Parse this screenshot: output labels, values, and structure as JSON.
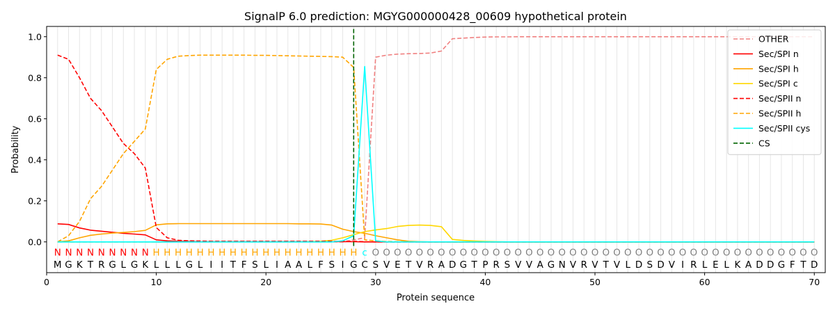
{
  "chart_data": {
    "type": "line",
    "title": "SignalP 6.0 prediction: MGYG000000428_00609 hypothetical protein",
    "xlabel": "Protein sequence",
    "ylabel": "Probability",
    "xlim": [
      0,
      71
    ],
    "ylim": [
      -0.15,
      1.05
    ],
    "xticks": [
      0,
      10,
      20,
      30,
      40,
      50,
      60,
      70
    ],
    "yticks": [
      0.0,
      0.2,
      0.4,
      0.6,
      0.8,
      1.0
    ],
    "grid": "vertical lines at each residue",
    "legend_position": "top-right",
    "sequence": [
      "M",
      "G",
      "K",
      "T",
      "R",
      "G",
      "L",
      "G",
      "K",
      "L",
      "L",
      "L",
      "G",
      "L",
      "I",
      "I",
      "T",
      "F",
      "S",
      "L",
      "I",
      "A",
      "A",
      "L",
      "F",
      "S",
      "I",
      "G",
      "C",
      "S",
      "V",
      "E",
      "T",
      "V",
      "R",
      "A",
      "D",
      "G",
      "T",
      "P",
      "R",
      "S",
      "V",
      "V",
      "A",
      "G",
      "N",
      "V",
      "R",
      "V",
      "T",
      "V",
      "L",
      "D",
      "S",
      "D",
      "V",
      "I",
      "R",
      "L",
      "E",
      "L",
      "K",
      "A",
      "D",
      "D",
      "G",
      "F",
      "T",
      "D"
    ],
    "states": [
      "N",
      "N",
      "N",
      "N",
      "N",
      "N",
      "N",
      "N",
      "N",
      "H",
      "H",
      "H",
      "H",
      "H",
      "H",
      "H",
      "H",
      "H",
      "H",
      "H",
      "H",
      "H",
      "H",
      "H",
      "H",
      "H",
      "H",
      "H",
      "C",
      "O",
      "O",
      "O",
      "O",
      "O",
      "O",
      "O",
      "O",
      "O",
      "O",
      "O",
      "O",
      "O",
      "O",
      "O",
      "O",
      "O",
      "O",
      "O",
      "O",
      "O",
      "O",
      "O",
      "O",
      "O",
      "O",
      "O",
      "O",
      "O",
      "O",
      "O",
      "O",
      "O",
      "O",
      "O",
      "O",
      "O",
      "O",
      "O",
      "O",
      "O"
    ],
    "state_colors": {
      "N": "#ff0000",
      "H": "#ffa500",
      "C": "#00ffff",
      "O": "#808080"
    },
    "cleavage_site": 28,
    "series": [
      {
        "name": "OTHER",
        "color": "#f08080",
        "dash": "dashed",
        "values": [
          0.0,
          0.0,
          0.0,
          0.0,
          0.0,
          0.0,
          0.0,
          0.0,
          0.0,
          0.0,
          0.0,
          0.0,
          0.0,
          0.0,
          0.0,
          0.0,
          0.0,
          0.0,
          0.0,
          0.0,
          0.0,
          0.0,
          0.0,
          0.0,
          0.0,
          0.0,
          0.0,
          0.01,
          0.02,
          0.9,
          0.91,
          0.915,
          0.917,
          0.918,
          0.92,
          0.93,
          0.99,
          0.993,
          0.996,
          0.998,
          0.999,
          0.999,
          1.0,
          1.0,
          1.0,
          1.0,
          1.0,
          1.0,
          1.0,
          1.0,
          1.0,
          1.0,
          1.0,
          1.0,
          1.0,
          1.0,
          1.0,
          1.0,
          1.0,
          1.0,
          1.0,
          1.0,
          1.0,
          1.0,
          1.0,
          1.0,
          1.0,
          1.0,
          1.0,
          1.0
        ]
      },
      {
        "name": "Sec/SPI n",
        "color": "#ff0000",
        "dash": "solid",
        "values": [
          0.088,
          0.085,
          0.068,
          0.057,
          0.052,
          0.047,
          0.042,
          0.038,
          0.034,
          0.01,
          0.005,
          0.003,
          0.002,
          0.001,
          0.001,
          0.001,
          0.001,
          0.001,
          0.001,
          0.001,
          0.001,
          0.001,
          0.001,
          0.001,
          0.001,
          0.001,
          0.001,
          0.001,
          0.0,
          0.0,
          0.0,
          0.0,
          0.0,
          0.0,
          0.0,
          0.0,
          0.0,
          0.0,
          0.0,
          0.0,
          0.0,
          0.0,
          0.0,
          0.0,
          0.0,
          0.0,
          0.0,
          0.0,
          0.0,
          0.0,
          0.0,
          0.0,
          0.0,
          0.0,
          0.0,
          0.0,
          0.0,
          0.0,
          0.0,
          0.0,
          0.0,
          0.0,
          0.0,
          0.0,
          0.0,
          0.0,
          0.0,
          0.0,
          0.0,
          0.0
        ]
      },
      {
        "name": "Sec/SPI h",
        "color": "#ffa500",
        "dash": "solid",
        "values": [
          0.0,
          0.005,
          0.02,
          0.032,
          0.038,
          0.043,
          0.046,
          0.05,
          0.056,
          0.083,
          0.088,
          0.089,
          0.089,
          0.089,
          0.089,
          0.089,
          0.089,
          0.089,
          0.089,
          0.089,
          0.089,
          0.089,
          0.088,
          0.088,
          0.087,
          0.082,
          0.062,
          0.05,
          0.042,
          0.03,
          0.02,
          0.01,
          0.003,
          0.001,
          0.0,
          0.0,
          0.0,
          0.0,
          0.0,
          0.0,
          0.0,
          0.0,
          0.0,
          0.0,
          0.0,
          0.0,
          0.0,
          0.0,
          0.0,
          0.0,
          0.0,
          0.0,
          0.0,
          0.0,
          0.0,
          0.0,
          0.0,
          0.0,
          0.0,
          0.0,
          0.0,
          0.0,
          0.0,
          0.0,
          0.0,
          0.0,
          0.0,
          0.0,
          0.0,
          0.0
        ]
      },
      {
        "name": "Sec/SPI c",
        "color": "#ffd700",
        "dash": "solid",
        "values": [
          0.0,
          0.0,
          0.0,
          0.0,
          0.0,
          0.0,
          0.0,
          0.0,
          0.0,
          0.0,
          0.0,
          0.0,
          0.0,
          0.0,
          0.0,
          0.0,
          0.0,
          0.0,
          0.0,
          0.0,
          0.0,
          0.0,
          0.0,
          0.001,
          0.003,
          0.008,
          0.02,
          0.035,
          0.05,
          0.058,
          0.065,
          0.075,
          0.08,
          0.082,
          0.08,
          0.074,
          0.012,
          0.007,
          0.004,
          0.002,
          0.001,
          0.0,
          0.0,
          0.0,
          0.0,
          0.0,
          0.0,
          0.0,
          0.0,
          0.0,
          0.0,
          0.0,
          0.0,
          0.0,
          0.0,
          0.0,
          0.0,
          0.0,
          0.0,
          0.0,
          0.0,
          0.0,
          0.0,
          0.0,
          0.0,
          0.0,
          0.0,
          0.0,
          0.0,
          0.0
        ]
      },
      {
        "name": "Sec/SPII n",
        "color": "#ff0000",
        "dash": "dashed",
        "values": [
          0.91,
          0.89,
          0.8,
          0.7,
          0.64,
          0.56,
          0.48,
          0.43,
          0.36,
          0.07,
          0.02,
          0.008,
          0.005,
          0.004,
          0.003,
          0.003,
          0.003,
          0.003,
          0.003,
          0.003,
          0.003,
          0.003,
          0.003,
          0.003,
          0.003,
          0.003,
          0.003,
          0.003,
          0.001,
          0.0,
          0.0,
          0.0,
          0.0,
          0.0,
          0.0,
          0.0,
          0.0,
          0.0,
          0.0,
          0.0,
          0.0,
          0.0,
          0.0,
          0.0,
          0.0,
          0.0,
          0.0,
          0.0,
          0.0,
          0.0,
          0.0,
          0.0,
          0.0,
          0.0,
          0.0,
          0.0,
          0.0,
          0.0,
          0.0,
          0.0,
          0.0,
          0.0,
          0.0,
          0.0,
          0.0,
          0.0,
          0.0,
          0.0,
          0.0,
          0.0
        ]
      },
      {
        "name": "Sec/SPII h",
        "color": "#ffa500",
        "dash": "dashed",
        "values": [
          0.0,
          0.03,
          0.1,
          0.21,
          0.27,
          0.35,
          0.43,
          0.49,
          0.55,
          0.84,
          0.89,
          0.905,
          0.908,
          0.91,
          0.91,
          0.91,
          0.91,
          0.91,
          0.909,
          0.909,
          0.908,
          0.907,
          0.906,
          0.905,
          0.904,
          0.903,
          0.9,
          0.85,
          0.01,
          0.005,
          0.002,
          0.001,
          0.0,
          0.0,
          0.0,
          0.0,
          0.0,
          0.0,
          0.0,
          0.0,
          0.0,
          0.0,
          0.0,
          0.0,
          0.0,
          0.0,
          0.0,
          0.0,
          0.0,
          0.0,
          0.0,
          0.0,
          0.0,
          0.0,
          0.0,
          0.0,
          0.0,
          0.0,
          0.0,
          0.0,
          0.0,
          0.0,
          0.0,
          0.0,
          0.0,
          0.0,
          0.0,
          0.0,
          0.0,
          0.0
        ]
      },
      {
        "name": "Sec/SPII cys",
        "color": "#00ffff",
        "dash": "solid",
        "values": [
          0.0,
          0.0,
          0.0,
          0.0,
          0.0,
          0.0,
          0.0,
          0.0,
          0.0,
          0.0,
          0.0,
          0.0,
          0.0,
          0.0,
          0.0,
          0.0,
          0.0,
          0.0,
          0.0,
          0.0,
          0.0,
          0.0,
          0.0,
          0.0,
          0.0,
          0.0,
          0.005,
          0.03,
          0.855,
          0.005,
          0.0,
          0.0,
          0.0,
          0.0,
          0.0,
          0.0,
          0.0,
          0.0,
          0.0,
          0.0,
          0.0,
          0.0,
          0.0,
          0.0,
          0.0,
          0.0,
          0.0,
          0.0,
          0.0,
          0.0,
          0.0,
          0.0,
          0.0,
          0.0,
          0.0,
          0.0,
          0.0,
          0.0,
          0.0,
          0.0,
          0.0,
          0.0,
          0.0,
          0.0,
          0.0,
          0.0,
          0.0,
          0.0,
          0.0,
          0.0
        ]
      },
      {
        "name": "CS",
        "color": "#006400",
        "dash": "dashed",
        "values": []
      }
    ]
  }
}
